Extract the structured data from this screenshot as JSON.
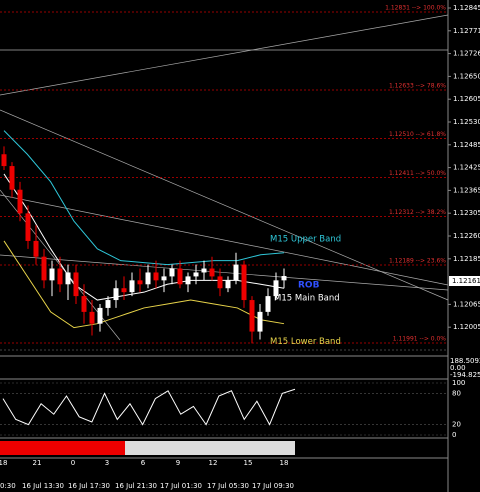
{
  "chart_data": {
    "type": "candlestick",
    "price_labels": [
      "1.12845",
      "1.12771",
      "1.12726",
      "1.12650",
      "1.12605",
      "1.12530",
      "1.12485",
      "1.12425",
      "1.12365",
      "1.12305",
      "1.12260",
      "1.12185",
      "1.12065",
      "1.12005"
    ],
    "current_price": "1.12161",
    "fib_levels": [
      {
        "value": 1.12831,
        "label": "1.12831 --> 100.0%"
      },
      {
        "value": 1.12633,
        "label": "1.12633 --> 78.6%"
      },
      {
        "value": 1.1251,
        "label": "1.12510 --> 61.8%"
      },
      {
        "value": 1.12411,
        "label": "1.12411 --> 50.0%"
      },
      {
        "value": 1.12312,
        "label": "1.12312 --> 38.2%"
      },
      {
        "value": 1.12189,
        "label": "1.12189 --> 23.6%"
      },
      {
        "value": 1.11991,
        "label": "1.11991 --> 0.0%"
      }
    ],
    "candles": [
      [
        1.1247,
        1.1249,
        1.1243,
        1.1244
      ],
      [
        1.1244,
        1.1245,
        1.1236,
        1.1238
      ],
      [
        1.1238,
        1.124,
        1.123,
        1.1232
      ],
      [
        1.1232,
        1.1234,
        1.1223,
        1.1225
      ],
      [
        1.1225,
        1.1229,
        1.1219,
        1.1221
      ],
      [
        1.1221,
        1.1223,
        1.1213,
        1.1215
      ],
      [
        1.1215,
        1.122,
        1.1211,
        1.1218
      ],
      [
        1.1218,
        1.1221,
        1.1212,
        1.1214
      ],
      [
        1.1214,
        1.1219,
        1.121,
        1.1217
      ],
      [
        1.1217,
        1.1219,
        1.1209,
        1.1211
      ],
      [
        1.1211,
        1.1214,
        1.1204,
        1.1207
      ],
      [
        1.1207,
        1.121,
        1.1201,
        1.1204
      ],
      [
        1.1204,
        1.1209,
        1.1202,
        1.1208
      ],
      [
        1.1208,
        1.1211,
        1.1206,
        1.121
      ],
      [
        1.121,
        1.1215,
        1.1208,
        1.1213
      ],
      [
        1.1213,
        1.1216,
        1.121,
        1.1212
      ],
      [
        1.1212,
        1.1217,
        1.1211,
        1.1215
      ],
      [
        1.1215,
        1.1218,
        1.1212,
        1.1214
      ],
      [
        1.1214,
        1.1219,
        1.1213,
        1.1217
      ],
      [
        1.1217,
        1.122,
        1.1213,
        1.1215
      ],
      [
        1.1215,
        1.1218,
        1.1212,
        1.1216
      ],
      [
        1.1216,
        1.1219,
        1.1214,
        1.1218
      ],
      [
        1.1218,
        1.122,
        1.1213,
        1.1214
      ],
      [
        1.1214,
        1.1217,
        1.1212,
        1.1216
      ],
      [
        1.1216,
        1.1219,
        1.1214,
        1.1217
      ],
      [
        1.1217,
        1.122,
        1.1215,
        1.1218
      ],
      [
        1.1218,
        1.1221,
        1.1215,
        1.1216
      ],
      [
        1.1216,
        1.1218,
        1.1211,
        1.1213
      ],
      [
        1.1213,
        1.1216,
        1.1212,
        1.1215
      ],
      [
        1.1215,
        1.1222,
        1.1214,
        1.1219
      ],
      [
        1.1219,
        1.122,
        1.1208,
        1.121
      ],
      [
        1.121,
        1.1211,
        1.1199,
        1.1202
      ],
      [
        1.1202,
        1.1209,
        1.12,
        1.1207
      ],
      [
        1.1207,
        1.1213,
        1.1206,
        1.1211
      ],
      [
        1.1211,
        1.1217,
        1.121,
        1.1215
      ],
      [
        1.1215,
        1.1218,
        1.1213,
        1.12161
      ]
    ],
    "bands": [
      {
        "name": "M15 Upper Band",
        "color": "#2fc6d8",
        "values": [
          1.1253,
          1.1247,
          1.124,
          1.123,
          1.1223,
          1.122,
          1.12195,
          1.1219,
          1.12195,
          1.122,
          1.122,
          1.12215,
          1.1222
        ]
      },
      {
        "name": "M15 Main Band",
        "color": "#ffffff",
        "values": [
          1.1242,
          1.1233,
          1.1223,
          1.1214,
          1.121,
          1.1211,
          1.1212,
          1.1214,
          1.1215,
          1.1215,
          1.1215,
          1.1214,
          1.1213
        ]
      },
      {
        "name": "M15 Lower Band",
        "color": "#e8d44a",
        "values": [
          1.1225,
          1.1216,
          1.1207,
          1.1203,
          1.1204,
          1.1206,
          1.1208,
          1.1209,
          1.121,
          1.1209,
          1.1208,
          1.1205,
          1.1204
        ]
      }
    ],
    "rob_label": "ROB",
    "cci_labels": [
      "188.5092",
      "0.00",
      "-194.8255"
    ],
    "stoch_labels": [
      100,
      80,
      20,
      0
    ],
    "stochastic": [
      70,
      30,
      20,
      60,
      40,
      75,
      35,
      25,
      80,
      30,
      60,
      20,
      70,
      85,
      40,
      55,
      20,
      75,
      85,
      30,
      65,
      20,
      80,
      88
    ],
    "hour_labels": [
      "18",
      "21",
      "0",
      "3",
      "6",
      "9",
      "12",
      "15",
      "18"
    ],
    "date_labels": [
      "0:30",
      "16 Jul 13:30",
      "16 Jul 17:30",
      "16 Jul 21:30",
      "17 Jul 01:30",
      "17 Jul 05:30",
      "17 Jul 09:30"
    ]
  }
}
